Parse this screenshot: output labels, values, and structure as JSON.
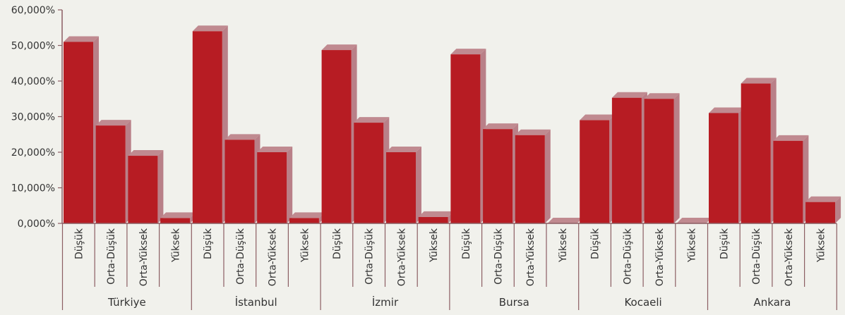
{
  "chart_data": {
    "type": "bar",
    "groups": [
      "Türkiye",
      "İstanbul",
      "İzmir",
      "Bursa",
      "Kocaeli",
      "Ankara"
    ],
    "categories": [
      "Düşük",
      "Orta-Düşük",
      "Orta-Yüksek",
      "Yüksek"
    ],
    "values": [
      [
        51.0,
        27.5,
        19.0,
        1.5
      ],
      [
        54.0,
        23.5,
        20.0,
        1.5
      ],
      [
        48.7,
        28.3,
        20.0,
        1.8
      ],
      [
        47.5,
        26.5,
        24.8,
        0.0
      ],
      [
        29.0,
        35.3,
        35.0,
        0.0
      ],
      [
        31.0,
        39.3,
        23.2,
        6.0
      ]
    ],
    "ylim": [
      0,
      60
    ],
    "yticks": [
      0,
      10,
      20,
      30,
      40,
      50,
      60
    ],
    "ytick_labels": [
      "0,000%",
      "10,000%",
      "20,000%",
      "30,000%",
      "40,000%",
      "50,000%",
      "60,000%"
    ],
    "title": "",
    "xlabel": "",
    "ylabel": "",
    "grid": false,
    "colors": {
      "bar_front": "#b71c23",
      "bar_top": "#c08a90",
      "bar_side": "#b98088",
      "axis": "#8c5e63"
    }
  }
}
